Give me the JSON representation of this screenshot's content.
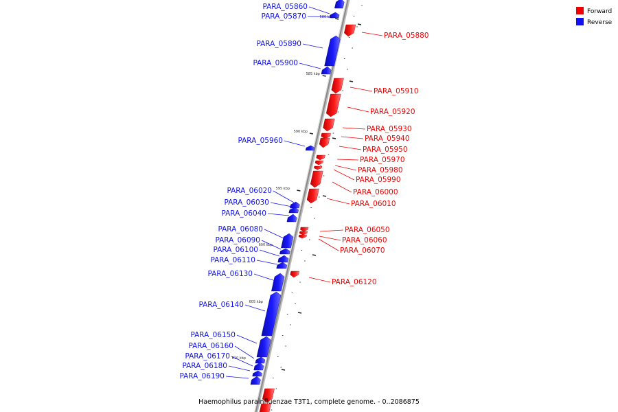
{
  "caption": "Haemophilus parainfluenzae T3T1, complete genome. - 0..2086875",
  "colors": {
    "forward": "#ee0000",
    "reverse": "#1111ee",
    "axis": "#888888"
  },
  "legend": [
    {
      "label": "Forward",
      "strand": "forward"
    },
    {
      "label": "Reverse",
      "strand": "reverse"
    }
  ],
  "scale_marks": [
    {
      "label": "580 kbp",
      "pos_kbp": 580
    },
    {
      "label": "585 kbp",
      "pos_kbp": 585
    },
    {
      "label": "590 kbp",
      "pos_kbp": 590
    },
    {
      "label": "595 kbp",
      "pos_kbp": 595
    },
    {
      "label": "600 kbp",
      "pos_kbp": 600
    },
    {
      "label": "605 kbp",
      "pos_kbp": 605
    },
    {
      "label": "610 kbp",
      "pos_kbp": 610
    }
  ],
  "genes": [
    {
      "name": "PARA_05860",
      "strand": "reverse"
    },
    {
      "name": "PARA_05870",
      "strand": "reverse"
    },
    {
      "name": "PARA_05880",
      "strand": "forward"
    },
    {
      "name": "PARA_05890",
      "strand": "reverse"
    },
    {
      "name": "PARA_05900",
      "strand": "reverse"
    },
    {
      "name": "PARA_05910",
      "strand": "forward"
    },
    {
      "name": "PARA_05920",
      "strand": "forward"
    },
    {
      "name": "PARA_05930",
      "strand": "forward"
    },
    {
      "name": "PARA_05940",
      "strand": "forward"
    },
    {
      "name": "PARA_05950",
      "strand": "forward"
    },
    {
      "name": "PARA_05960",
      "strand": "reverse"
    },
    {
      "name": "PARA_05970",
      "strand": "forward"
    },
    {
      "name": "PARA_05980",
      "strand": "forward"
    },
    {
      "name": "PARA_05990",
      "strand": "forward"
    },
    {
      "name": "PARA_06000",
      "strand": "forward"
    },
    {
      "name": "PARA_06010",
      "strand": "forward"
    },
    {
      "name": "PARA_06020",
      "strand": "reverse"
    },
    {
      "name": "PARA_06030",
      "strand": "reverse"
    },
    {
      "name": "PARA_06040",
      "strand": "reverse"
    },
    {
      "name": "PARA_06050",
      "strand": "forward"
    },
    {
      "name": "PARA_06060",
      "strand": "forward"
    },
    {
      "name": "PARA_06070",
      "strand": "forward"
    },
    {
      "name": "PARA_06080",
      "strand": "reverse"
    },
    {
      "name": "PARA_06090",
      "strand": "reverse"
    },
    {
      "name": "PARA_06100",
      "strand": "reverse"
    },
    {
      "name": "PARA_06110",
      "strand": "reverse"
    },
    {
      "name": "PARA_06120",
      "strand": "forward"
    },
    {
      "name": "PARA_06130",
      "strand": "reverse"
    },
    {
      "name": "PARA_06140",
      "strand": "reverse"
    },
    {
      "name": "PARA_06150",
      "strand": "reverse"
    },
    {
      "name": "PARA_06160",
      "strand": "reverse"
    },
    {
      "name": "PARA_06170",
      "strand": "reverse"
    },
    {
      "name": "PARA_06180",
      "strand": "reverse"
    },
    {
      "name": "PARA_06190",
      "strand": "reverse"
    }
  ]
}
